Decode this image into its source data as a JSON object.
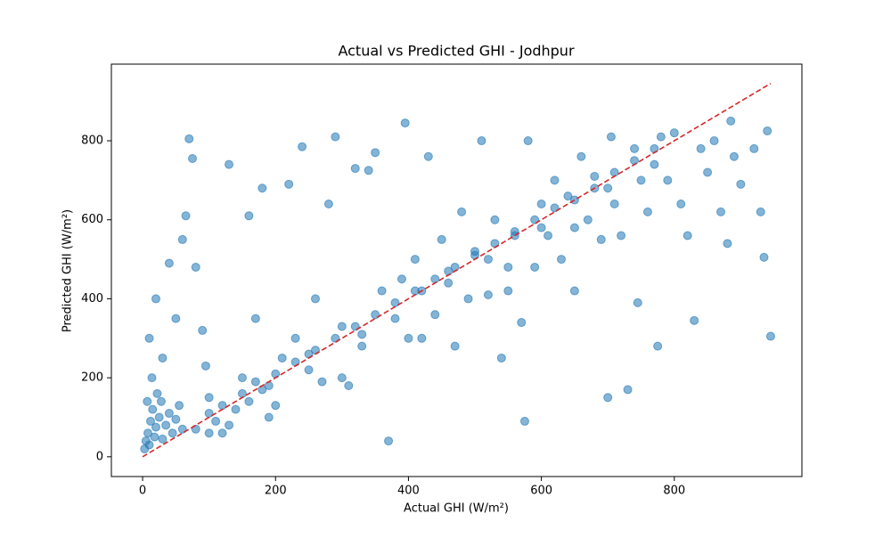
{
  "chart_data": {
    "type": "scatter",
    "title": "Actual vs Predicted GHI - Jodhpur",
    "x_label": "Actual GHI (W/m²)",
    "y_label": "Predicted GHI (W/m²)",
    "xlim": [
      -47,
      992
    ],
    "ylim": [
      -50,
      994
    ],
    "xticks": [
      0,
      200,
      400,
      600,
      800
    ],
    "yticks": [
      0,
      200,
      400,
      600,
      800
    ],
    "points": {
      "color": "#1f77b4",
      "x": [
        5,
        8,
        10,
        12,
        15,
        18,
        20,
        25,
        28,
        30,
        35,
        40,
        45,
        50,
        55,
        60,
        3,
        7,
        22,
        14,
        10,
        20,
        30,
        40,
        50,
        60,
        65,
        70,
        75,
        80,
        90,
        95,
        100,
        110,
        120,
        130,
        140,
        150,
        160,
        170,
        180,
        190,
        200,
        210,
        220,
        230,
        240,
        250,
        260,
        270,
        280,
        290,
        300,
        310,
        320,
        330,
        340,
        350,
        360,
        370,
        380,
        390,
        395,
        400,
        410,
        420,
        430,
        440,
        450,
        460,
        470,
        480,
        490,
        500,
        510,
        520,
        530,
        540,
        550,
        560,
        570,
        575,
        580,
        590,
        600,
        610,
        620,
        630,
        640,
        650,
        660,
        670,
        680,
        690,
        700,
        705,
        710,
        720,
        730,
        740,
        745,
        750,
        760,
        770,
        775,
        780,
        790,
        800,
        810,
        820,
        830,
        840,
        850,
        860,
        870,
        880,
        885,
        890,
        900,
        920,
        930,
        935,
        940,
        945,
        80,
        100,
        120,
        150,
        170,
        200,
        230,
        260,
        290,
        320,
        350,
        380,
        410,
        440,
        470,
        500,
        530,
        560,
        590,
        620,
        650,
        680,
        710,
        740,
        770,
        100,
        130,
        160,
        190,
        300,
        420,
        550,
        650,
        700,
        600,
        520,
        460,
        330,
        250,
        180
      ],
      "y": [
        40,
        60,
        30,
        90,
        120,
        50,
        75,
        100,
        140,
        45,
        80,
        110,
        60,
        95,
        130,
        70,
        20,
        140,
        160,
        200,
        300,
        400,
        250,
        490,
        350,
        550,
        610,
        805,
        755,
        480,
        320,
        230,
        150,
        90,
        60,
        740,
        120,
        200,
        610,
        350,
        680,
        180,
        130,
        250,
        690,
        300,
        785,
        220,
        400,
        190,
        640,
        810,
        330,
        180,
        730,
        280,
        725,
        770,
        420,
        40,
        350,
        450,
        845,
        300,
        500,
        420,
        760,
        360,
        550,
        470,
        280,
        620,
        400,
        520,
        800,
        410,
        600,
        250,
        480,
        560,
        340,
        90,
        800,
        480,
        640,
        560,
        700,
        500,
        660,
        420,
        760,
        600,
        710,
        550,
        150,
        810,
        640,
        560,
        170,
        780,
        390,
        700,
        620,
        740,
        280,
        810,
        700,
        820,
        640,
        560,
        345,
        780,
        720,
        800,
        620,
        540,
        850,
        760,
        690,
        780,
        620,
        505,
        825,
        305,
        70,
        110,
        130,
        160,
        190,
        210,
        240,
        270,
        300,
        330,
        360,
        390,
        420,
        450,
        480,
        510,
        540,
        570,
        600,
        630,
        650,
        680,
        720,
        750,
        780,
        60,
        80,
        140,
        100,
        200,
        300,
        420,
        580,
        680,
        580,
        500,
        440,
        310,
        260,
        170
      ]
    },
    "identity_line": {
      "color": "#d62728",
      "x": [
        0,
        945
      ],
      "y": [
        0,
        945
      ]
    }
  }
}
